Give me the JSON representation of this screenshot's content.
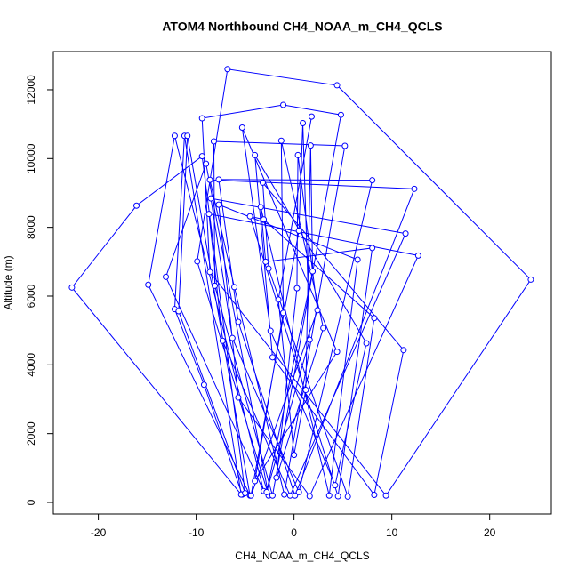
{
  "chart_data": {
    "type": "scatter",
    "title": "ATOM4 Northbound CH4_NOAA_m_CH4_QCLS",
    "x_label": "CH4_NOAA_m_CH4_QCLS",
    "y_label": "Altitude (m)",
    "xlim": [
      -24.6,
      26.3
    ],
    "ylim": [
      -336,
      13111
    ],
    "xticks": [
      -20,
      -10,
      0,
      10,
      20
    ],
    "yticks": [
      0,
      2000,
      4000,
      6000,
      8000,
      10000,
      12000
    ],
    "series": [
      {
        "color": "#0000ff",
        "x": [
          -5.3,
          -9.2,
          -12.2,
          -11.2,
          -5.4,
          -22.7,
          -16.1,
          -9.4,
          -5.0,
          -11.8,
          -10.9,
          -4.5,
          -14.9,
          -12.2,
          -3.1,
          -13.1,
          -9.0,
          -2.6,
          -9.9,
          -6.8,
          4.4,
          24.2,
          9.4,
          -8.6,
          -9.4,
          -1.1,
          4.8,
          -2.2,
          -8.1,
          -8.2,
          5.2,
          -1.0,
          -6.1,
          -8.6,
          12.3,
          0.1,
          -5.7,
          -7.7,
          8.0,
          0.5,
          -6.3,
          -8.5,
          11.4,
          -0.4,
          -7.3,
          -8.7,
          12.7,
          1.6,
          -5.7,
          -7.7,
          6.5,
          3.6,
          -3.4,
          -2.9,
          8.0,
          4.5,
          -4.5,
          -3.1,
          8.2,
          5.5,
          -2.6,
          -3.2,
          11.2,
          8.2,
          -2.2,
          -4.0,
          7.4,
          4.2,
          -2.4,
          -5.3,
          4.4,
          -4.0,
          -1.1,
          -1.3,
          3.0,
          -1.8,
          0.3,
          0.4,
          2.4,
          -4.4,
          0.5,
          0.9,
          1.6,
          -2.8,
          1.9,
          1.7,
          1.2,
          0.0,
          -1.6,
          1.8
        ],
        "values": [
          230,
          3420,
          5620,
          10660,
          230,
          6250,
          8630,
          10070,
          270,
          5560,
          10660,
          200,
          6330,
          10660,
          330,
          6560,
          9850,
          200,
          7010,
          12600,
          12130,
          6480,
          200,
          6700,
          11170,
          11560,
          11270,
          200,
          6300,
          10500,
          10370,
          230,
          6260,
          9380,
          9120,
          200,
          5250,
          9390,
          9370,
          300,
          4780,
          8840,
          7820,
          200,
          4700,
          8390,
          7180,
          180,
          3050,
          8660,
          7060,
          200,
          8590,
          7000,
          7400,
          180,
          8320,
          8230,
          5360,
          170,
          6800,
          9300,
          4430,
          220,
          4220,
          10100,
          4630,
          500,
          4990,
          10900,
          4380,
          620,
          5510,
          10520,
          5070,
          720,
          6230,
          10100,
          5590,
          200,
          7900,
          11030,
          4730,
          300,
          6720,
          10380,
          3270,
          1380,
          5900,
          11220
        ]
      }
    ]
  }
}
